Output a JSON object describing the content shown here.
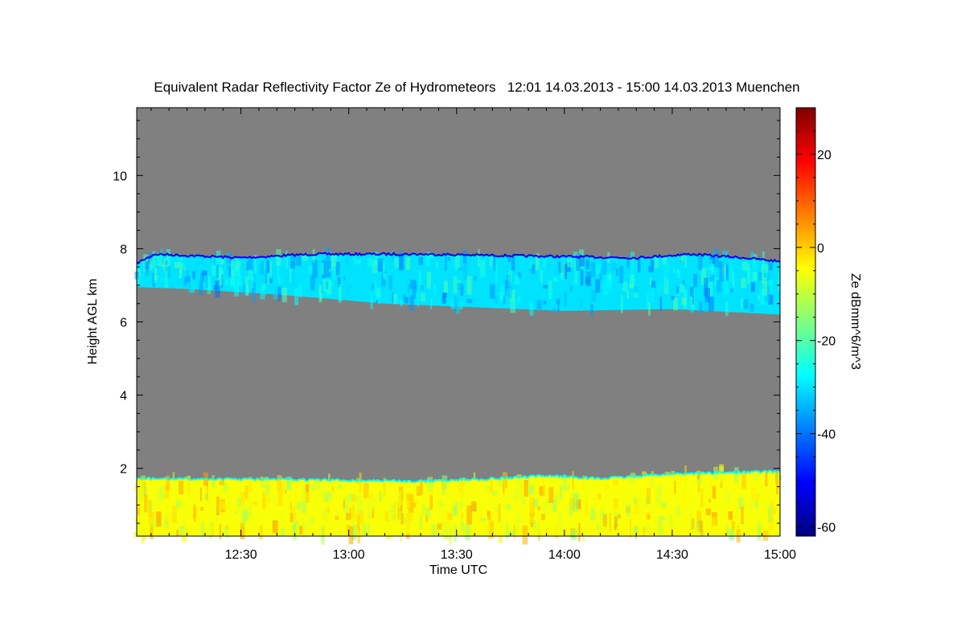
{
  "chart_data": {
    "type": "heatmap",
    "title": "Equivalent Radar Reflectivity Factor Ze of Hydrometeors   12:01 14.03.2013 - 15:00 14.03.2013 Muenchen",
    "xlabel": "Time UTC",
    "ylabel": "Height AGL km",
    "colorbar_label": "Ze dBmm^6/m^3",
    "x_range_min": [
      721,
      900
    ],
    "ylim": [
      0.15,
      11.85
    ],
    "zlim": [
      -62,
      30
    ],
    "x_ticks": [
      {
        "value": 750,
        "label": "12:30"
      },
      {
        "value": 780,
        "label": "13:00"
      },
      {
        "value": 810,
        "label": "13:30"
      },
      {
        "value": 840,
        "label": "14:00"
      },
      {
        "value": 870,
        "label": "14:30"
      },
      {
        "value": 900,
        "label": "15:00"
      }
    ],
    "y_ticks": [
      {
        "value": 2,
        "label": "2"
      },
      {
        "value": 4,
        "label": "4"
      },
      {
        "value": 6,
        "label": "6"
      },
      {
        "value": 8,
        "label": "8"
      },
      {
        "value": 10,
        "label": "10"
      }
    ],
    "colorbar_ticks": [
      {
        "value": 20,
        "label": "20"
      },
      {
        "value": 0,
        "label": "0"
      },
      {
        "value": -20,
        "label": "-20"
      },
      {
        "value": -40,
        "label": "-40"
      },
      {
        "value": -60,
        "label": "-60"
      }
    ],
    "colormap": [
      "#00007f",
      "#0000ff",
      "#007fff",
      "#00ffff",
      "#7fff7f",
      "#ffff00",
      "#ff7f00",
      "#ff0000",
      "#7f0000"
    ],
    "background_color": "#808080",
    "layers": [
      {
        "kind": "ice-cloud",
        "ze_typical": -30,
        "top_km": [
          [
            721,
            7.6
          ],
          [
            726,
            7.85
          ],
          [
            750,
            7.75
          ],
          [
            770,
            7.85
          ],
          [
            800,
            7.85
          ],
          [
            830,
            7.8
          ],
          [
            860,
            7.75
          ],
          [
            875,
            7.85
          ],
          [
            890,
            7.75
          ],
          [
            900,
            7.65
          ]
        ],
        "bottom_km": [
          [
            721,
            6.95
          ],
          [
            735,
            6.9
          ],
          [
            760,
            6.75
          ],
          [
            790,
            6.5
          ],
          [
            815,
            6.4
          ],
          [
            840,
            6.3
          ],
          [
            870,
            6.35
          ],
          [
            900,
            6.2
          ]
        ]
      },
      {
        "kind": "boundary-layer",
        "ze_typical": -5,
        "top_km": [
          [
            721,
            1.72
          ],
          [
            760,
            1.7
          ],
          [
            800,
            1.65
          ],
          [
            820,
            1.72
          ],
          [
            836,
            1.8
          ],
          [
            850,
            1.72
          ],
          [
            870,
            1.85
          ],
          [
            900,
            1.92
          ]
        ],
        "bottom_km": [
          [
            721,
            0.15
          ],
          [
            900,
            0.15
          ]
        ]
      }
    ]
  }
}
